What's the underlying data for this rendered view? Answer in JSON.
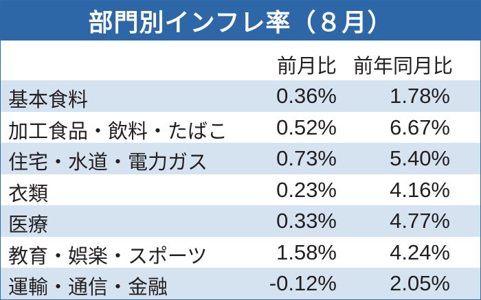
{
  "title": "部門別インフレ率（８月）",
  "columns": {
    "mom": "前月比",
    "yoy": "前年同月比"
  },
  "rows": [
    {
      "label": "基本食料",
      "mom": "0.36%",
      "yoy": "1.78%"
    },
    {
      "label": "加工食品・飲料・たばこ",
      "mom": "0.52%",
      "yoy": "6.67%"
    },
    {
      "label": "住宅・水道・電力ガス",
      "mom": "0.73%",
      "yoy": "5.40%"
    },
    {
      "label": "衣類",
      "mom": "0.23%",
      "yoy": "4.16%"
    },
    {
      "label": "医療",
      "mom": "0.33%",
      "yoy": "4.77%"
    },
    {
      "label": "教育・娯楽・スポーツ",
      "mom": "1.58%",
      "yoy": "4.24%"
    },
    {
      "label": "運輸・通信・金融",
      "mom": "-0.12%",
      "yoy": "2.05%"
    }
  ],
  "colors": {
    "header_bg": "#2d67a8",
    "row_shade": "#d5e3f0",
    "text": "#231f20"
  }
}
